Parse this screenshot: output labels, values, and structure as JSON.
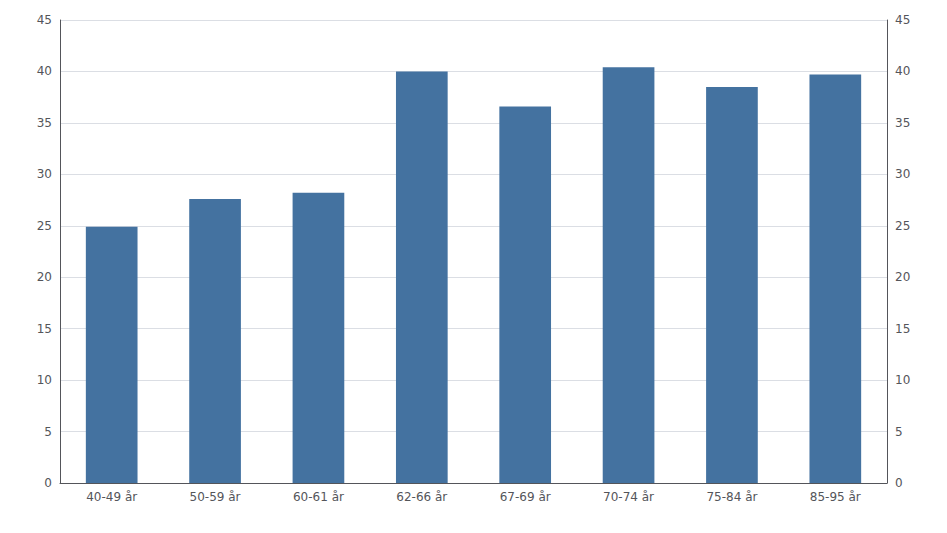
{
  "chart_data": {
    "type": "bar",
    "categories": [
      "40-49 år",
      "50-59 år",
      "60-61 år",
      "62-66 år",
      "67-69 år",
      "70-74 år",
      "75-84 år",
      "85-95 år"
    ],
    "values": [
      24.9,
      27.6,
      28.2,
      40.0,
      36.6,
      40.4,
      38.5,
      39.7
    ],
    "color": "#4472a0",
    "ylim": [
      0,
      45
    ],
    "yticks": [
      0,
      5,
      10,
      15,
      20,
      25,
      30,
      35,
      40,
      45
    ],
    "y2lim": [
      0,
      45
    ],
    "y2ticks": [
      0,
      5,
      10,
      15,
      20,
      25,
      30,
      35,
      40,
      45
    ],
    "grid": true
  }
}
